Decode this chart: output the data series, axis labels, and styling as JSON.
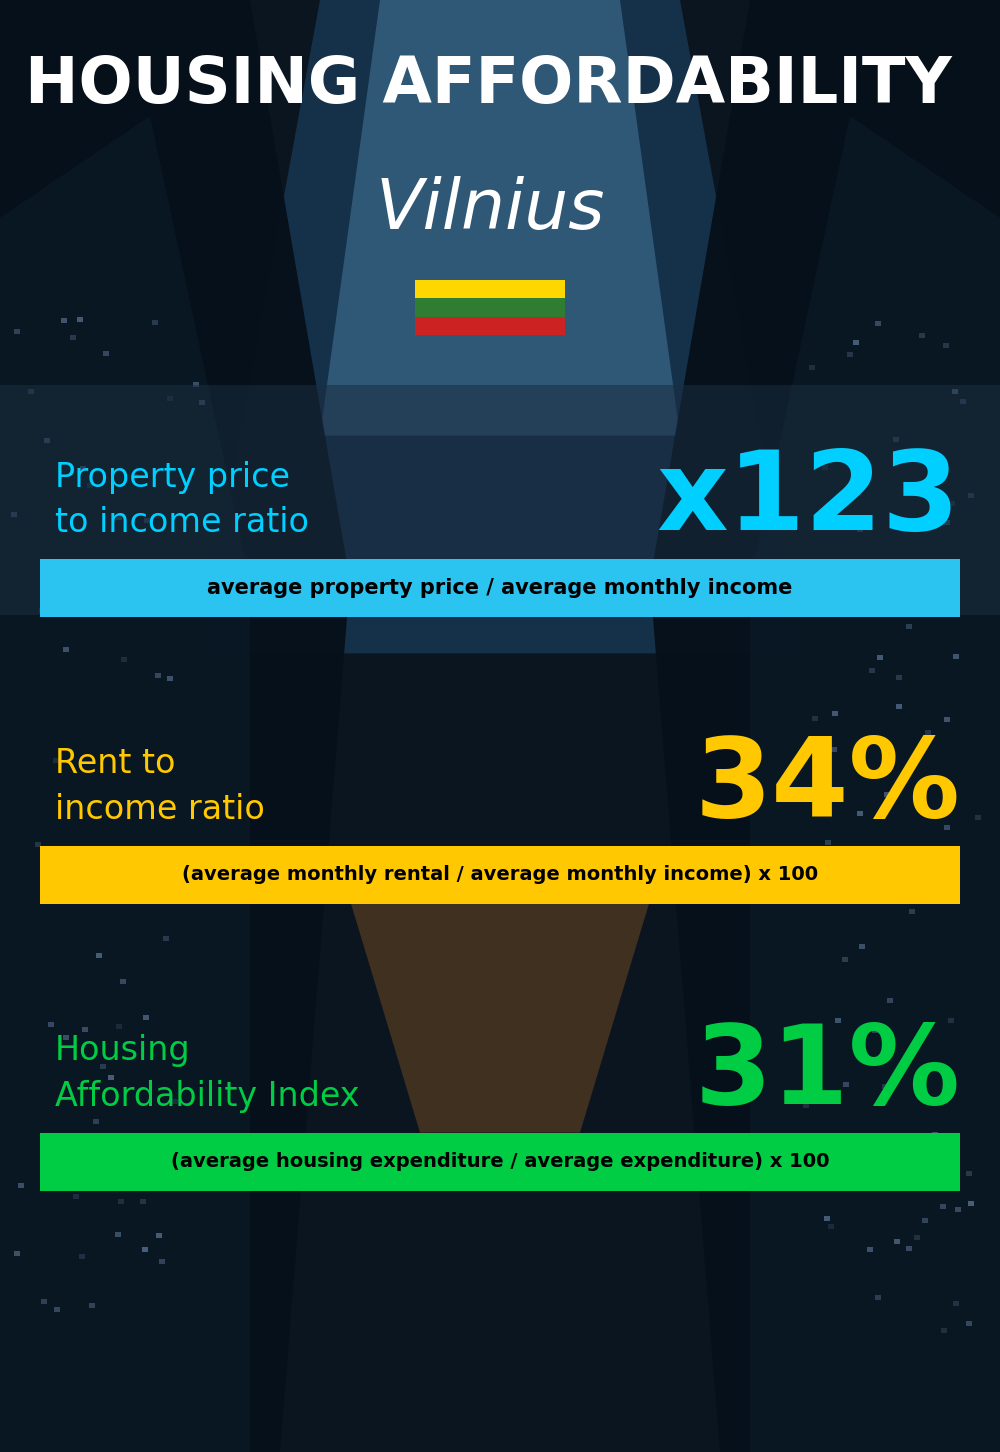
{
  "title_line1": "HOUSING AFFORDABILITY",
  "title_line2": "Vilnius",
  "bg_color": "#0d1b2a",
  "section1_label": "Property price\nto income ratio",
  "section1_value": "x123",
  "section1_label_color": "#00cfff",
  "section1_value_color": "#00cfff",
  "section1_banner_text": "average property price / average monthly income",
  "section1_banner_bg": "#2bc4f0",
  "section2_label": "Rent to\nincome ratio",
  "section2_value": "34%",
  "section2_label_color": "#ffc800",
  "section2_value_color": "#ffc800",
  "section2_banner_text": "(average monthly rental / average monthly income) x 100",
  "section2_banner_bg": "#ffc800",
  "section3_label": "Housing\nAffordability Index",
  "section3_value": "31%",
  "section3_label_color": "#00cc44",
  "section3_value_color": "#00cc44",
  "section3_banner_text": "(average housing expenditure / average expenditure) x 100",
  "section3_banner_bg": "#00cc44",
  "flag_colors": [
    "#ffd700",
    "#2e7d32",
    "#cc2222"
  ],
  "title_color": "#ffffff",
  "banner_text_color": "#000000",
  "overlay_bg": "#0d1b2a"
}
